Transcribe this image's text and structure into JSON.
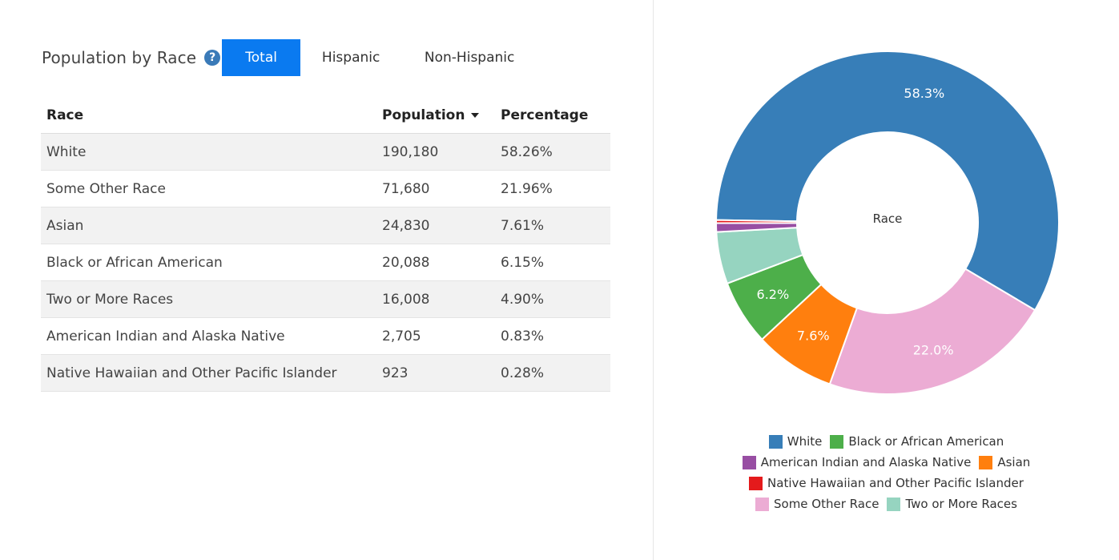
{
  "header": {
    "title": "Population by Race",
    "help_icon": "question-circle-icon",
    "tabs": [
      {
        "label": "Total",
        "active": true
      },
      {
        "label": "Hispanic",
        "active": false
      },
      {
        "label": "Non-Hispanic",
        "active": false
      }
    ]
  },
  "table": {
    "columns": [
      "Race",
      "Population",
      "Percentage"
    ],
    "sort_column": "Population",
    "sort_direction": "descending",
    "rows": [
      {
        "race": "White",
        "population": "190,180",
        "percentage": "58.26%"
      },
      {
        "race": "Some Other Race",
        "population": "71,680",
        "percentage": "21.96%"
      },
      {
        "race": "Asian",
        "population": "24,830",
        "percentage": "7.61%"
      },
      {
        "race": "Black or African American",
        "population": "20,088",
        "percentage": "6.15%"
      },
      {
        "race": "Two or More Races",
        "population": "16,008",
        "percentage": "4.90%"
      },
      {
        "race": "American Indian and Alaska Native",
        "population": "2,705",
        "percentage": "0.83%"
      },
      {
        "race": "Native Hawaiian and Other Pacific Islander",
        "population": "923",
        "percentage": "0.28%"
      }
    ]
  },
  "chart_data": {
    "type": "pie",
    "donut": true,
    "center_label": "Race",
    "slices": [
      {
        "name": "White",
        "value": 190180,
        "label": "58.3%",
        "color": "#377eb8"
      },
      {
        "name": "Some Other Race",
        "value": 71680,
        "label": "22.0%",
        "color": "#ecacd4"
      },
      {
        "name": "Asian",
        "value": 24830,
        "label": "7.6%",
        "color": "#ff7f0e"
      },
      {
        "name": "Black or African American",
        "value": 20088,
        "label": "6.2%",
        "color": "#4daf4a"
      },
      {
        "name": "Two or More Races",
        "value": 16008,
        "label": "",
        "color": "#96d4c0"
      },
      {
        "name": "American Indian and Alaska Native",
        "value": 2705,
        "label": "",
        "color": "#984ea3"
      },
      {
        "name": "Native Hawaiian and Other Pacific Islander",
        "value": 923,
        "label": "",
        "color": "#e41a1c"
      }
    ],
    "legend_rows": [
      [
        {
          "name": "White",
          "color": "#377eb8"
        },
        {
          "name": "Black or African American",
          "color": "#4daf4a"
        }
      ],
      [
        {
          "name": "American Indian and Alaska Native",
          "color": "#984ea3"
        },
        {
          "name": "Asian",
          "color": "#ff7f0e"
        }
      ],
      [
        {
          "name": "Native Hawaiian and Other Pacific Islander",
          "color": "#e41a1c"
        }
      ],
      [
        {
          "name": "Some Other Race",
          "color": "#ecacd4"
        },
        {
          "name": "Two or More Races",
          "color": "#96d4c0"
        }
      ]
    ],
    "legend_placement": "bottom"
  }
}
